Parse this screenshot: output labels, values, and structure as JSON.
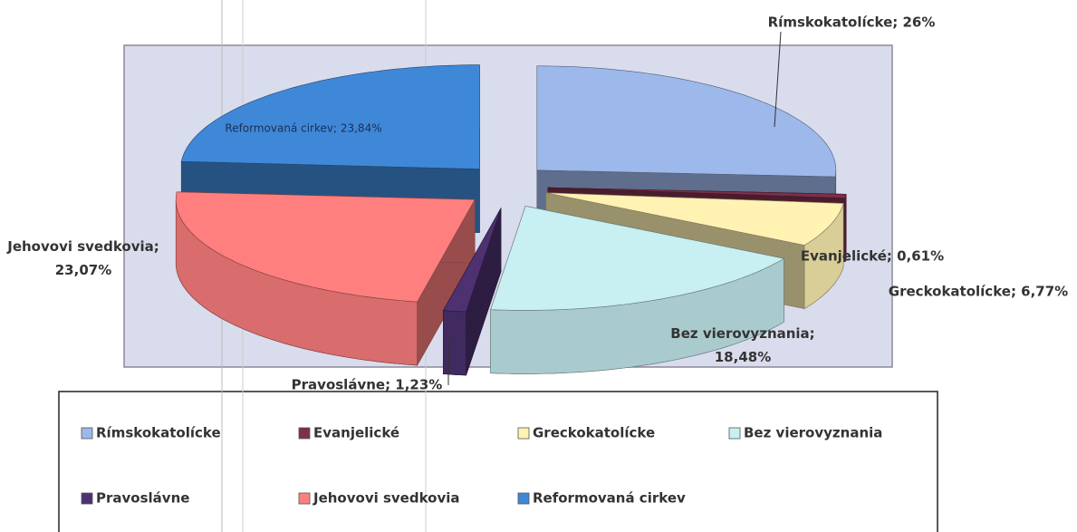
{
  "chart_data": {
    "type": "pie",
    "categories": [
      "Rímskokatolícke",
      "Evanjelické",
      "Greckokatolícke",
      "Bez vierovyznania",
      "Pravoslávne",
      "Jehovovi svedkovia",
      "Reformovaná cirkev"
    ],
    "values": [
      26,
      0.61,
      6.77,
      18.48,
      1.23,
      23.07,
      23.84
    ],
    "value_labels": [
      "Rímskokatolícke; 26%",
      "Evanjelické; 0,61%",
      "Greckokatolícke; 6,77%",
      "Bez vierovyznania; 18,48%",
      "Pravoslávne; 1,23%",
      "Jehovovi svedkovia; 23,07%",
      "Reformovaná cirkev; 23,84%"
    ],
    "colors": [
      "#9db8ea",
      "#7d2f4c",
      "#fff2b3",
      "#c8eff1",
      "#4d3170",
      "#ff7f7f",
      "#3f88d8"
    ],
    "legend": "bottom"
  }
}
